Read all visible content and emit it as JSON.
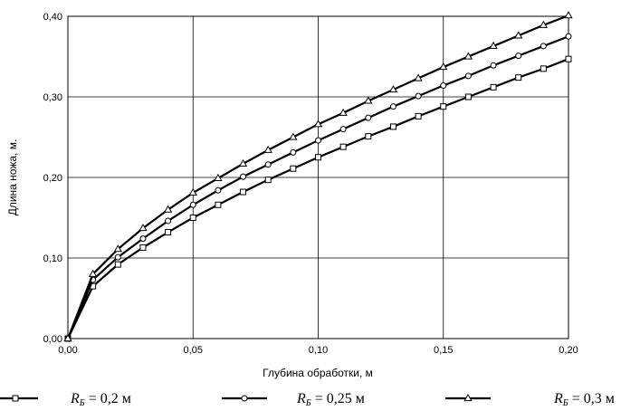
{
  "chart_data": {
    "type": "line",
    "xlabel": "Глубина обработки, м",
    "ylabel": "Длина ножа, м.",
    "xlim": [
      0,
      0.2
    ],
    "ylim": [
      0,
      0.4
    ],
    "x_ticks": [
      "0,00",
      "0,05",
      "0,10",
      "0,15",
      "0,20"
    ],
    "y_ticks": [
      "0,00",
      "0,10",
      "0,20",
      "0,30",
      "0,40"
    ],
    "grid": true,
    "legend_position": "bottom",
    "x": [
      0,
      0.01,
      0.02,
      0.03,
      0.04,
      0.05,
      0.06,
      0.07,
      0.08,
      0.09,
      0.1,
      0.11,
      0.12,
      0.13,
      0.14,
      0.15,
      0.16,
      0.17,
      0.18,
      0.19,
      0.2
    ],
    "series": [
      {
        "name": "R_Б = 0,2 м",
        "legend": {
          "main": "R",
          "sub": "Б",
          "rest": " = 0,2  м"
        },
        "marker": "square",
        "values": [
          0,
          0.065,
          0.092,
          0.113,
          0.132,
          0.15,
          0.166,
          0.182,
          0.197,
          0.211,
          0.225,
          0.238,
          0.251,
          0.263,
          0.276,
          0.288,
          0.3,
          0.312,
          0.324,
          0.335,
          0.347
        ]
      },
      {
        "name": "R_Б = 0,25 м",
        "legend": {
          "main": "R",
          "sub": "Б",
          "rest": " = 0,25  м"
        },
        "marker": "circle",
        "values": [
          0,
          0.073,
          0.101,
          0.124,
          0.146,
          0.166,
          0.184,
          0.201,
          0.216,
          0.231,
          0.246,
          0.26,
          0.274,
          0.288,
          0.301,
          0.314,
          0.326,
          0.339,
          0.351,
          0.363,
          0.375
        ]
      },
      {
        "name": "R_Б = 0,3 м",
        "legend": {
          "main": "R",
          "sub": "Б",
          "rest": " = 0,3  м"
        },
        "marker": "triangle",
        "values": [
          0,
          0.08,
          0.111,
          0.137,
          0.16,
          0.181,
          0.199,
          0.217,
          0.234,
          0.25,
          0.266,
          0.28,
          0.295,
          0.309,
          0.323,
          0.337,
          0.35,
          0.363,
          0.376,
          0.389,
          0.401
        ]
      }
    ]
  }
}
